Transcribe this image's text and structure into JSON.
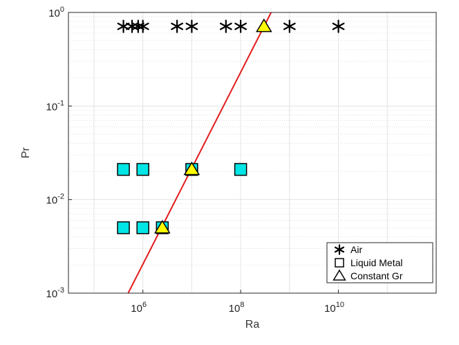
{
  "chart_data": {
    "type": "scatter",
    "xlabel": "Ra",
    "ylabel": "Pr",
    "xscale": "log",
    "yscale": "log",
    "xlim": [
      30000,
      1000000000000
    ],
    "ylim": [
      0.001,
      1
    ],
    "x_ticks": [
      {
        "base": "10",
        "exp": "6",
        "value": 1000000
      },
      {
        "base": "10",
        "exp": "8",
        "value": 100000000
      },
      {
        "base": "10",
        "exp": "10",
        "value": 10000000000
      }
    ],
    "y_ticks": [
      {
        "base": "10",
        "exp": "0",
        "value": 1
      },
      {
        "base": "10",
        "exp": "-1",
        "value": 0.1
      },
      {
        "base": "10",
        "exp": "-2",
        "value": 0.01
      },
      {
        "base": "10",
        "exp": "-3",
        "value": 0.001
      }
    ],
    "grid": true,
    "legend_position": "bottom-right",
    "series": [
      {
        "name": "Air",
        "marker": "asterisk",
        "color": "#000000",
        "points": [
          {
            "x": 400000,
            "y": 0.71
          },
          {
            "x": 600000,
            "y": 0.71
          },
          {
            "x": 800000,
            "y": 0.71
          },
          {
            "x": 1000000,
            "y": 0.71
          },
          {
            "x": 5000000,
            "y": 0.71
          },
          {
            "x": 10000000,
            "y": 0.71
          },
          {
            "x": 50000000,
            "y": 0.71
          },
          {
            "x": 100000000,
            "y": 0.71
          },
          {
            "x": 1000000000,
            "y": 0.71
          },
          {
            "x": 10000000000,
            "y": 0.71
          }
        ]
      },
      {
        "name": "Liquid Metal",
        "marker": "square",
        "color": "#00e5e5",
        "points": [
          {
            "x": 400000,
            "y": 0.021
          },
          {
            "x": 1000000,
            "y": 0.021
          },
          {
            "x": 10000000,
            "y": 0.021
          },
          {
            "x": 100000000,
            "y": 0.021
          },
          {
            "x": 400000,
            "y": 0.005
          },
          {
            "x": 1000000,
            "y": 0.005
          },
          {
            "x": 2500000,
            "y": 0.005
          }
        ]
      },
      {
        "name": "Constant Gr",
        "marker": "triangle",
        "color": "#ffff00",
        "points": [
          {
            "x": 2500000,
            "y": 0.005
          },
          {
            "x": 10000000,
            "y": 0.021
          },
          {
            "x": 300000000,
            "y": 0.71
          }
        ]
      }
    ],
    "line": {
      "color": "#e31a1c",
      "points": [
        {
          "x": 500000,
          "y": 0.001
        },
        {
          "x": 420000000,
          "y": 1
        }
      ]
    }
  }
}
